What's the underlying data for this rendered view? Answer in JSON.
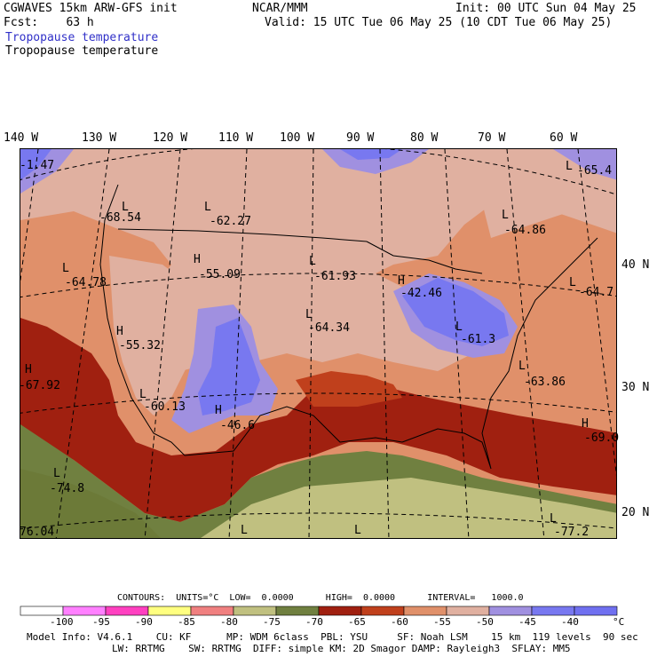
{
  "header": {
    "model": "CGWAVES 15km ARW-GFS init",
    "org": "NCAR/MMM",
    "init": "Init: 00 UTC Sun 04 May 25",
    "fcst": "Fcst:    63 h",
    "valid": "Valid: 15 UTC Tue 06 May 25 (10 CDT Tue 06 May 25)",
    "field_blue": "Tropopause temperature",
    "field_black": "Tropopause temperature"
  },
  "lon_labels": [
    "140 W",
    "130 W",
    "120 W",
    "110 W",
    "100 W",
    "90 W",
    "80 W",
    "70 W",
    "60 W"
  ],
  "lat_labels": [
    "40 N",
    "30 N",
    "20 N"
  ],
  "map_labels": [
    {
      "letter": "",
      "value": "-1.47"
    },
    {
      "letter": "L",
      "value": "-68.54"
    },
    {
      "letter": "L",
      "value": "-62.27"
    },
    {
      "letter": "L",
      "value": "-65.4"
    },
    {
      "letter": "L",
      "value": "-64.86"
    },
    {
      "letter": "L",
      "value": "-64.78"
    },
    {
      "letter": "H",
      "value": "-55.09"
    },
    {
      "letter": "L",
      "value": "-61.93"
    },
    {
      "letter": "H",
      "value": "-42.46"
    },
    {
      "letter": "L",
      "value": "-64.7"
    },
    {
      "letter": "H",
      "value": "-55.32"
    },
    {
      "letter": "L",
      "value": "-64.34"
    },
    {
      "letter": "L",
      "value": "-61.3"
    },
    {
      "letter": "H",
      "value": "-67.92"
    },
    {
      "letter": "L",
      "value": "-63.86"
    },
    {
      "letter": "L",
      "value": "-60.13"
    },
    {
      "letter": "H",
      "value": "-46.6"
    },
    {
      "letter": "H",
      "value": "-69.0"
    },
    {
      "letter": "L",
      "value": "-74.8"
    },
    {
      "letter": "",
      "value": "76.04"
    },
    {
      "letter": "L",
      "value": ""
    },
    {
      "letter": "L",
      "value": ""
    },
    {
      "letter": "L",
      "value": "-77.2"
    }
  ],
  "contours_line": "CONTOURS:  UNITS=°C  LOW=  0.0000      HIGH=  0.0000      INTERVAL=   1000.0",
  "colorbar": {
    "colors": [
      "#ffffff",
      "#ff80ff",
      "#ff40c0",
      "#ffff80",
      "#f08080",
      "#c0c080",
      "#708040",
      "#a02010",
      "#c0401c",
      "#e0906a",
      "#e0b0a0",
      "#a090e0",
      "#7878f0",
      "#7070f0",
      "#7070f0"
    ],
    "labels": [
      "-100",
      "-95",
      "-90",
      "-85",
      "-80",
      "-75",
      "-70",
      "-65",
      "-60",
      "-55",
      "-50",
      "-45",
      "-40"
    ],
    "unit": "°C"
  },
  "footer": {
    "line1": "Model Info: V4.6.1    CU: KF      MP: WDM 6class  PBL: YSU     SF: Noah LSM    15 km  119 levels  90 sec",
    "line2": "LW: RRTMG    SW: RRTMG  DIFF: simple KM: 2D Smagor DAMP: Rayleigh3  SFLAY: MM5"
  }
}
